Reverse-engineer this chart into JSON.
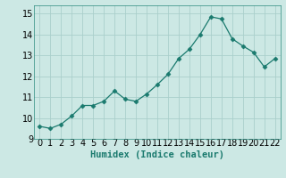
{
  "x": [
    0,
    1,
    2,
    3,
    4,
    5,
    6,
    7,
    8,
    9,
    10,
    11,
    12,
    13,
    14,
    15,
    16,
    17,
    18,
    19,
    20,
    21,
    22
  ],
  "y": [
    9.6,
    9.5,
    9.7,
    10.1,
    10.6,
    10.6,
    10.8,
    11.3,
    10.9,
    10.8,
    11.15,
    11.6,
    12.1,
    12.85,
    13.3,
    14.0,
    14.85,
    14.75,
    13.8,
    13.45,
    13.15,
    12.45,
    12.85
  ],
  "line_color": "#1a7a6e",
  "marker": "D",
  "marker_size": 2.5,
  "bg_color": "#cce8e4",
  "grid_color": "#aacfcb",
  "xlabel": "Humidex (Indice chaleur)",
  "xlabel_fontsize": 7.5,
  "tick_fontsize": 7,
  "ylim": [
    9.0,
    15.4
  ],
  "xlim": [
    -0.5,
    22.5
  ],
  "yticks": [
    9,
    10,
    11,
    12,
    13,
    14,
    15
  ],
  "xticks": [
    0,
    1,
    2,
    3,
    4,
    5,
    6,
    7,
    8,
    9,
    10,
    11,
    12,
    13,
    14,
    15,
    16,
    17,
    18,
    19,
    20,
    21,
    22
  ]
}
